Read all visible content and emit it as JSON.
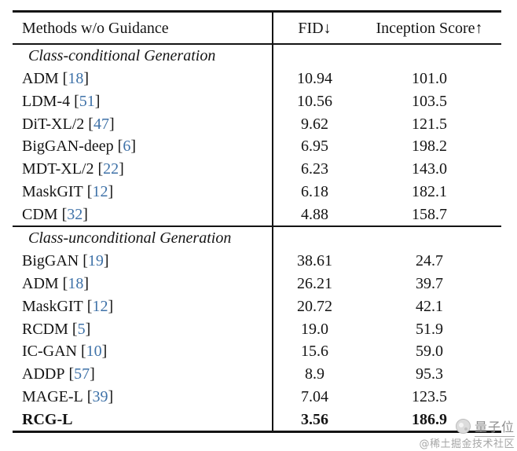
{
  "table": {
    "header": {
      "method": "Methods w/o Guidance",
      "fid": "FID↓",
      "inception": "Inception Score↑"
    },
    "sections": [
      {
        "title": "Class-conditional Generation",
        "rows": [
          {
            "method": "ADM",
            "cite": "18",
            "fid": "10.94",
            "is": "101.0",
            "bold": false
          },
          {
            "method": "LDM-4",
            "cite": "51",
            "fid": "10.56",
            "is": "103.5",
            "bold": false
          },
          {
            "method": "DiT-XL/2",
            "cite": "47",
            "fid": "9.62",
            "is": "121.5",
            "bold": false
          },
          {
            "method": "BigGAN-deep",
            "cite": "6",
            "fid": "6.95",
            "is": "198.2",
            "bold": false
          },
          {
            "method": "MDT-XL/2",
            "cite": "22",
            "fid": "6.23",
            "is": "143.0",
            "bold": false
          },
          {
            "method": "MaskGIT",
            "cite": "12",
            "fid": "6.18",
            "is": "182.1",
            "bold": false
          },
          {
            "method": "CDM",
            "cite": "32",
            "fid": "4.88",
            "is": "158.7",
            "bold": false
          }
        ]
      },
      {
        "title": "Class-unconditional Generation",
        "rows": [
          {
            "method": "BigGAN",
            "cite": "19",
            "fid": "38.61",
            "is": "24.7",
            "bold": false
          },
          {
            "method": "ADM",
            "cite": "18",
            "fid": "26.21",
            "is": "39.7",
            "bold": false
          },
          {
            "method": "MaskGIT",
            "cite": "12",
            "fid": "20.72",
            "is": "42.1",
            "bold": false
          },
          {
            "method": "RCDM",
            "cite": "5",
            "fid": "19.0",
            "is": "51.9",
            "bold": false
          },
          {
            "method": "IC-GAN",
            "cite": "10",
            "fid": "15.6",
            "is": "59.0",
            "bold": false
          },
          {
            "method": "ADDP",
            "cite": "57",
            "fid": "8.9",
            "is": "95.3",
            "bold": false
          },
          {
            "method": "MAGE-L",
            "cite": "39",
            "fid": "7.04",
            "is": "123.5",
            "bold": false
          },
          {
            "method": "RCG-L",
            "cite": null,
            "fid": "3.56",
            "is": "186.9",
            "bold": true
          }
        ]
      }
    ]
  },
  "watermark": {
    "brand": "量子位",
    "credit": "@稀土掘金技术社区"
  },
  "colors": {
    "cite_blue": "#3f72a8",
    "text": "#141414",
    "watermark_gray": "#8f8f8f",
    "background": "#ffffff"
  }
}
